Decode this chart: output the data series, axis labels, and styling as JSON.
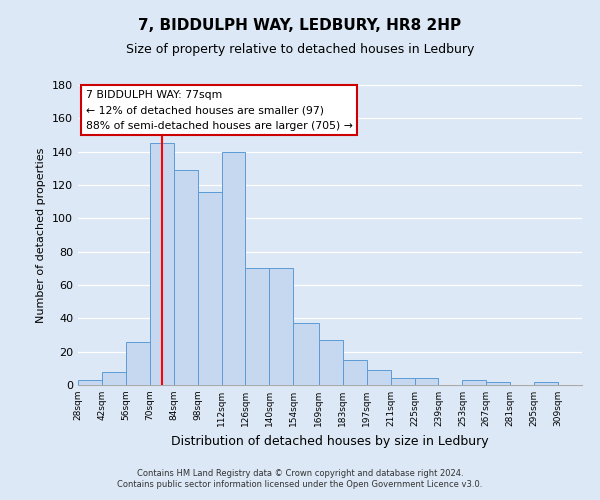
{
  "title": "7, BIDDULPH WAY, LEDBURY, HR8 2HP",
  "subtitle": "Size of property relative to detached houses in Ledbury",
  "xlabel": "Distribution of detached houses by size in Ledbury",
  "ylabel": "Number of detached properties",
  "bar_left_edges": [
    28,
    42,
    56,
    70,
    84,
    98,
    112,
    126,
    140,
    154,
    169,
    183,
    197,
    211,
    225,
    239,
    253,
    267,
    281,
    295,
    309
  ],
  "bar_heights": [
    3,
    8,
    26,
    145,
    129,
    116,
    140,
    70,
    70,
    37,
    27,
    15,
    9,
    4,
    4,
    0,
    3,
    2,
    0,
    2,
    0
  ],
  "bar_widths": [
    14,
    14,
    14,
    14,
    14,
    14,
    14,
    14,
    14,
    15,
    14,
    14,
    14,
    14,
    14,
    14,
    14,
    14,
    14,
    14,
    14
  ],
  "bar_color": "#c5d8f0",
  "bar_edge_color": "#5b9bd5",
  "red_line_x": 77,
  "ylim": [
    0,
    180
  ],
  "yticks": [
    0,
    20,
    40,
    60,
    80,
    100,
    120,
    140,
    160,
    180
  ],
  "xtick_labels": [
    "28sqm",
    "42sqm",
    "56sqm",
    "70sqm",
    "84sqm",
    "98sqm",
    "112sqm",
    "126sqm",
    "140sqm",
    "154sqm",
    "169sqm",
    "183sqm",
    "197sqm",
    "211sqm",
    "225sqm",
    "239sqm",
    "253sqm",
    "267sqm",
    "281sqm",
    "295sqm",
    "309sqm"
  ],
  "xtick_positions": [
    28,
    42,
    56,
    70,
    84,
    98,
    112,
    126,
    140,
    154,
    169,
    183,
    197,
    211,
    225,
    239,
    253,
    267,
    281,
    295,
    309
  ],
  "annotation_title": "7 BIDDULPH WAY: 77sqm",
  "annotation_line1": "← 12% of detached houses are smaller (97)",
  "annotation_line2": "88% of semi-detached houses are larger (705) →",
  "annotation_box_color": "#ffffff",
  "annotation_box_edge": "#cc0000",
  "background_color": "#dce8f5",
  "footer_line1": "Contains HM Land Registry data © Crown copyright and database right 2024.",
  "footer_line2": "Contains public sector information licensed under the Open Government Licence v3.0."
}
